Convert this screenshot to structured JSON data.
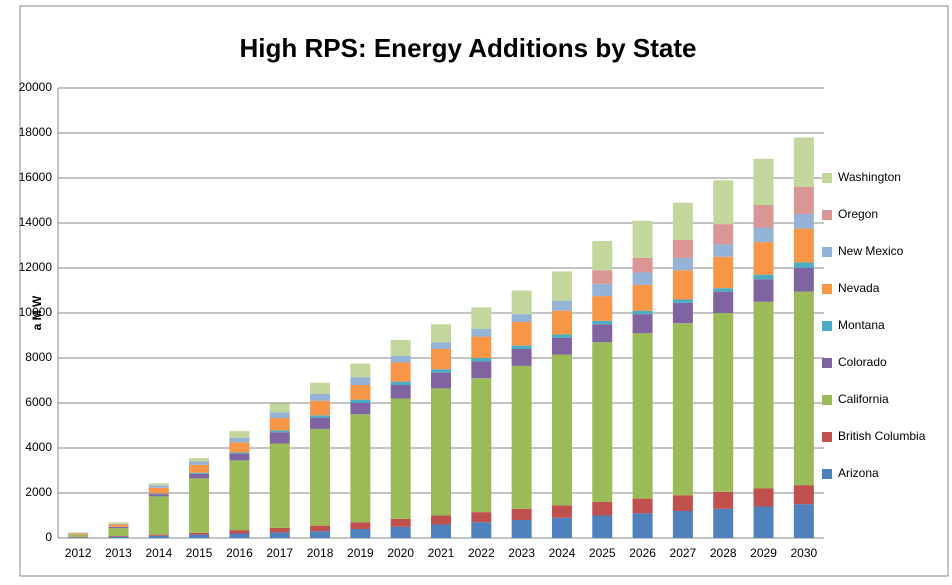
{
  "chart_data": {
    "type": "stacked-bar",
    "title": "High RPS: Energy Additions by State",
    "y_label": "a M W",
    "categories": [
      "2012",
      "2013",
      "2014",
      "2015",
      "2016",
      "2017",
      "2018",
      "2019",
      "2020",
      "2021",
      "2022",
      "2023",
      "2024",
      "2025",
      "2026",
      "2027",
      "2028",
      "2029",
      "2030"
    ],
    "ylim": [
      0,
      20000
    ],
    "yticks": [
      0,
      2000,
      4000,
      6000,
      8000,
      10000,
      12000,
      14000,
      16000,
      18000,
      20000
    ],
    "grid": true,
    "legend": "right",
    "series": [
      {
        "name": "Arizona",
        "color": "#4f81bd",
        "values": [
          30,
          60,
          100,
          150,
          200,
          250,
          300,
          400,
          500,
          600,
          700,
          800,
          900,
          1000,
          1100,
          1200,
          1300,
          1400,
          1500
        ]
      },
      {
        "name": "British Columbia",
        "color": "#c0504d",
        "values": [
          20,
          30,
          50,
          80,
          150,
          200,
          250,
          300,
          350,
          400,
          450,
          500,
          550,
          600,
          650,
          700,
          750,
          800,
          850
        ]
      },
      {
        "name": "California",
        "color": "#9bbb59",
        "values": [
          100,
          350,
          1700,
          2420,
          3100,
          3750,
          4300,
          4800,
          5350,
          5650,
          5950,
          6350,
          6700,
          7100,
          7350,
          7650,
          7950,
          8300,
          8600
        ]
      },
      {
        "name": "Colorado",
        "color": "#8064a2",
        "values": [
          10,
          50,
          100,
          200,
          300,
          500,
          500,
          500,
          600,
          700,
          750,
          750,
          750,
          800,
          850,
          900,
          950,
          1000,
          1050
        ]
      },
      {
        "name": "Montana",
        "color": "#4bacc6",
        "values": [
          0,
          10,
          30,
          50,
          50,
          80,
          100,
          150,
          150,
          150,
          150,
          150,
          150,
          150,
          150,
          150,
          150,
          200,
          250
        ]
      },
      {
        "name": "Nevada",
        "color": "#f79646",
        "values": [
          50,
          100,
          250,
          350,
          450,
          550,
          650,
          650,
          850,
          900,
          950,
          1050,
          1050,
          1100,
          1150,
          1300,
          1400,
          1450,
          1500
        ]
      },
      {
        "name": "New Mexico",
        "color": "#95b3d7",
        "values": [
          10,
          30,
          100,
          150,
          200,
          250,
          300,
          350,
          300,
          300,
          350,
          350,
          450,
          550,
          550,
          550,
          550,
          650,
          650
        ]
      },
      {
        "name": "Oregon",
        "color": "#d99694",
        "values": [
          0,
          0,
          0,
          0,
          0,
          0,
          0,
          0,
          0,
          0,
          0,
          0,
          0,
          600,
          650,
          800,
          900,
          1000,
          1200
        ]
      },
      {
        "name": "Washington",
        "color": "#c3d69b",
        "values": [
          30,
          70,
          100,
          150,
          300,
          400,
          500,
          600,
          700,
          800,
          950,
          1050,
          1300,
          1300,
          1650,
          1650,
          1950,
          2050,
          2200
        ]
      }
    ]
  }
}
